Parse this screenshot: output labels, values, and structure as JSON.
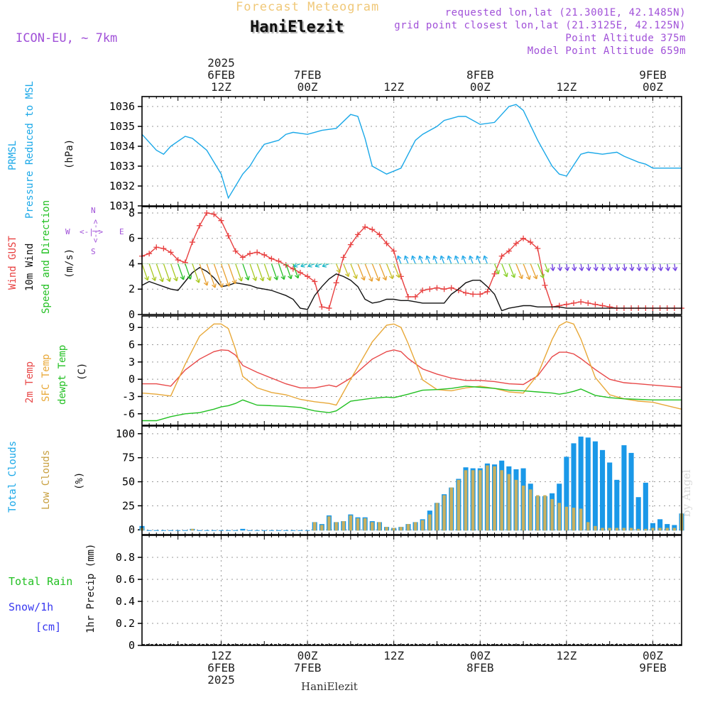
{
  "header": {
    "forecast_title": "Forecast Meteogram",
    "station": "HaniElezit",
    "model": "ICON-EU, ~ 7km",
    "requested": "requested lon,lat (21.3001E, 42.1485N)",
    "grid_point": "grid point closest lon,lat (21.3125E, 42.125N)",
    "point_altitude": "Point Altitude 375m",
    "model_altitude": "Model Point Altitude 659m"
  },
  "time_axis": {
    "top": [
      {
        "key": "t12a",
        "t": 12,
        "lines": [
          "2025",
          "6FEB",
          "12Z"
        ]
      },
      {
        "key": "t00a",
        "t": 24,
        "lines": [
          "7FEB",
          "00Z"
        ]
      },
      {
        "key": "t12b",
        "t": 36,
        "lines": [
          "12Z"
        ]
      },
      {
        "key": "t00b",
        "t": 48,
        "lines": [
          "8FEB",
          "00Z"
        ]
      },
      {
        "key": "t12c",
        "t": 60,
        "lines": [
          "12Z"
        ]
      },
      {
        "key": "t00c",
        "t": 72,
        "lines": [
          "9FEB",
          "00Z"
        ]
      }
    ],
    "bottom": [
      {
        "key": "b12a",
        "t": 12,
        "lines": [
          "12Z",
          "6FEB",
          "2025"
        ]
      },
      {
        "key": "b00a",
        "t": 24,
        "lines": [
          "00Z",
          "7FEB"
        ]
      },
      {
        "key": "b12b",
        "t": 36,
        "lines": [
          "12Z"
        ]
      },
      {
        "key": "b00b",
        "t": 48,
        "lines": [
          "00Z",
          "8FEB"
        ]
      },
      {
        "key": "b12c",
        "t": 60,
        "lines": [
          "12Z"
        ]
      },
      {
        "key": "b00c",
        "t": 72,
        "lines": [
          "00Z",
          "9FEB"
        ]
      }
    ],
    "start_hour": 1,
    "end_hour": 76
  },
  "panel_labels": {
    "pressure": [
      "PRMSL",
      "Pressure Reduced to MSL"
    ],
    "pressure_unit": "(hPa)",
    "wind": [
      "Wind GUST",
      "10m Wind",
      "Speed and Direction"
    ],
    "wind_unit": "(m/s)",
    "compass": {
      "n": "N",
      "s": "S",
      "w": "W",
      "e": "E",
      "ns": "<-|->",
      "ns_v": "<-|->"
    },
    "temp": [
      "2m Temp",
      "SFC Temp",
      "dewpt Temp"
    ],
    "temp_unit": "(C)",
    "clouds": [
      "Total Clouds",
      "Low Clouds"
    ],
    "clouds_unit": "(%)",
    "precip_left": [
      "Total  Rain",
      "Snow/1h",
      "[cm]"
    ],
    "precip_unit": "1hr Precip (mm)"
  },
  "footer": "HaniElezit",
  "byline": "by Angel",
  "colors": {
    "pressure": "#1aa8e8",
    "gust": "#e84040",
    "wind": "#111111",
    "temp2m": "#e84848",
    "sfc": "#e8a838",
    "dewpt": "#22c022",
    "total_clouds": "#1a98e8",
    "low_clouds": "#c8b060",
    "rain": "#22c022",
    "snow": "#3838f0"
  },
  "chart_data": [
    {
      "type": "line",
      "title": "PRMSL Pressure Reduced to MSL",
      "ylabel": "(hPa)",
      "ylim": [
        1031,
        1036.5
      ],
      "yticks": [
        1031,
        1032,
        1033,
        1034,
        1035,
        1036
      ],
      "x_hours": [
        1,
        3,
        4,
        5,
        7,
        8,
        10,
        12,
        13,
        15,
        16,
        17,
        18,
        20,
        21,
        22,
        24,
        25,
        26,
        28,
        30,
        31,
        32,
        33,
        35,
        37,
        38,
        39,
        40,
        42,
        43,
        45,
        46,
        48,
        50,
        51,
        52,
        53,
        54,
        56,
        58,
        59,
        60,
        62,
        63,
        65,
        67,
        68,
        70,
        71,
        72,
        74,
        75,
        76
      ],
      "series": [
        {
          "name": "PRMSL",
          "values": [
            1034.6,
            1033.8,
            1033.6,
            1034.0,
            1034.5,
            1034.4,
            1033.8,
            1032.6,
            1031.4,
            1032.6,
            1033.0,
            1033.6,
            1034.1,
            1034.3,
            1034.6,
            1034.7,
            1034.6,
            1034.7,
            1034.8,
            1034.9,
            1035.6,
            1035.5,
            1034.4,
            1033.0,
            1032.6,
            1032.9,
            1033.6,
            1034.3,
            1034.6,
            1035.0,
            1035.3,
            1035.5,
            1035.5,
            1035.1,
            1035.2,
            1035.6,
            1036.0,
            1036.1,
            1035.8,
            1034.3,
            1033.0,
            1032.6,
            1032.5,
            1033.6,
            1033.7,
            1033.6,
            1033.7,
            1033.5,
            1033.2,
            1033.1,
            1032.9,
            1032.9,
            1032.9,
            1032.9
          ]
        }
      ]
    },
    {
      "type": "line",
      "title": "Wind GUST / 10m Wind Speed and Direction",
      "ylabel": "(m/s)",
      "ylim": [
        0,
        8.5
      ],
      "yticks": [
        0,
        2,
        4,
        6,
        8
      ],
      "x_hours": [
        1,
        2,
        3,
        4,
        5,
        6,
        7,
        8,
        9,
        10,
        11,
        12,
        13,
        14,
        15,
        16,
        17,
        18,
        19,
        20,
        21,
        22,
        23,
        24,
        25,
        26,
        27,
        28,
        29,
        30,
        31,
        32,
        33,
        34,
        35,
        36,
        37,
        38,
        39,
        40,
        41,
        42,
        43,
        44,
        45,
        46,
        47,
        48,
        49,
        50,
        51,
        52,
        53,
        54,
        55,
        56,
        57,
        58,
        59,
        60,
        61,
        62,
        63,
        64,
        65,
        66,
        67,
        68,
        69,
        70,
        71,
        72,
        73,
        74,
        75,
        76
      ],
      "series": [
        {
          "name": "Wind GUST",
          "values": [
            4.6,
            4.8,
            5.3,
            5.2,
            4.9,
            4.3,
            4.1,
            5.7,
            7.0,
            8.0,
            7.9,
            7.4,
            6.2,
            5.0,
            4.5,
            4.8,
            4.9,
            4.7,
            4.4,
            4.2,
            3.9,
            3.6,
            3.3,
            3.0,
            2.6,
            0.6,
            0.5,
            2.5,
            4.5,
            5.5,
            6.3,
            6.9,
            6.7,
            6.3,
            5.6,
            5.0,
            3.0,
            1.4,
            1.4,
            1.9,
            2.0,
            2.1,
            2.0,
            2.1,
            1.9,
            1.7,
            1.6,
            1.6,
            1.8,
            3.2,
            4.6,
            5.0,
            5.6,
            6.0,
            5.7,
            5.2,
            2.3,
            0.6,
            0.7,
            0.8,
            0.9,
            1.0,
            0.9,
            0.8,
            0.7,
            0.6,
            0.5,
            0.5,
            0.5,
            0.5,
            0.5,
            0.5,
            0.5,
            0.5,
            0.5,
            0.5
          ]
        },
        {
          "name": "10m Wind",
          "values": [
            2.3,
            2.6,
            2.4,
            2.2,
            2.0,
            1.9,
            2.6,
            3.3,
            3.7,
            3.4,
            2.9,
            2.2,
            2.3,
            2.5,
            2.4,
            2.3,
            2.1,
            2.0,
            1.9,
            1.7,
            1.5,
            1.2,
            0.5,
            0.4,
            1.5,
            2.2,
            2.8,
            3.2,
            3.0,
            2.7,
            2.2,
            1.2,
            0.9,
            1.0,
            1.2,
            1.2,
            1.1,
            1.1,
            1.0,
            0.9,
            0.9,
            0.9,
            0.9,
            1.6,
            2.0,
            2.5,
            2.7,
            2.7,
            2.2,
            1.6,
            0.3,
            0.5,
            0.6,
            0.7,
            0.7,
            0.6,
            0.6,
            0.6,
            0.6,
            0.5,
            0.5,
            0.5,
            0.5,
            0.5,
            0.5,
            0.5,
            0.5,
            0.5,
            0.5,
            0.5,
            0.5,
            0.5,
            0.5,
            0.5,
            0.5,
            0.5
          ]
        }
      ],
      "wind_barb_level": 4
    },
    {
      "type": "line",
      "title": "2m Temp / SFC Temp / dewpt Temp",
      "ylabel": "(C)",
      "ylim": [
        -8,
        11
      ],
      "yticks": [
        -6,
        -3,
        0,
        3,
        6,
        9
      ],
      "x_hours": [
        1,
        3,
        5,
        7,
        9,
        11,
        12,
        13,
        14,
        15,
        17,
        19,
        21,
        23,
        25,
        27,
        28,
        30,
        33,
        35,
        36,
        37,
        38,
        40,
        42,
        44,
        46,
        48,
        50,
        52,
        54,
        56,
        58,
        59,
        60,
        61,
        62,
        64,
        66,
        68,
        70,
        72,
        74,
        76
      ],
      "series": [
        {
          "name": "2m Temp",
          "values": [
            -0.8,
            -0.8,
            -1.2,
            1.6,
            3.5,
            4.8,
            5.1,
            5.0,
            4.2,
            2.4,
            1.2,
            0.2,
            -0.8,
            -1.5,
            -1.5,
            -1.0,
            -1.3,
            0.2,
            3.5,
            4.8,
            5.1,
            4.8,
            3.6,
            1.8,
            0.9,
            0.2,
            -0.2,
            -0.2,
            -0.4,
            -0.8,
            -0.9,
            0.6,
            3.9,
            4.7,
            4.7,
            4.4,
            3.6,
            1.7,
            0.0,
            -0.6,
            -0.8,
            -1.0,
            -1.2,
            -1.4
          ]
        },
        {
          "name": "SFC Temp",
          "values": [
            -2.4,
            -2.6,
            -2.9,
            2.6,
            7.5,
            9.6,
            9.6,
            8.8,
            5.2,
            0.5,
            -1.5,
            -2.3,
            -2.7,
            -3.5,
            -3.9,
            -4.2,
            -4.5,
            0.0,
            6.5,
            9.4,
            9.6,
            9.0,
            6.2,
            -0.1,
            -1.8,
            -2.0,
            -1.5,
            -1.2,
            -1.6,
            -2.2,
            -2.4,
            0.8,
            6.9,
            9.3,
            10.0,
            9.6,
            7.0,
            0.3,
            -2.7,
            -3.4,
            -3.8,
            -4.0,
            -4.6,
            -5.2
          ]
        },
        {
          "name": "dewpt Temp",
          "values": [
            -7.2,
            -7.2,
            -6.5,
            -6.0,
            -5.8,
            -5.2,
            -4.8,
            -4.6,
            -4.2,
            -3.6,
            -4.5,
            -4.6,
            -4.7,
            -4.9,
            -5.5,
            -5.8,
            -5.5,
            -3.8,
            -3.3,
            -3.1,
            -3.2,
            -2.9,
            -2.6,
            -1.9,
            -1.8,
            -1.6,
            -1.2,
            -1.4,
            -1.6,
            -1.9,
            -2.0,
            -2.2,
            -2.4,
            -2.6,
            -2.4,
            -2.1,
            -1.7,
            -2.8,
            -3.2,
            -3.4,
            -3.5,
            -3.6,
            -3.6,
            -3.6
          ]
        }
      ]
    },
    {
      "type": "bar",
      "title": "Total Clouds / Low Clouds",
      "ylabel": "(%)",
      "ylim": [
        -5,
        108
      ],
      "yticks": [
        0,
        25,
        50,
        75,
        100
      ],
      "x_hours": [
        1,
        2,
        3,
        4,
        5,
        6,
        7,
        8,
        9,
        10,
        11,
        12,
        13,
        14,
        15,
        16,
        17,
        18,
        19,
        20,
        21,
        22,
        23,
        24,
        25,
        26,
        27,
        28,
        29,
        30,
        31,
        32,
        33,
        34,
        35,
        36,
        37,
        38,
        39,
        40,
        41,
        42,
        43,
        44,
        45,
        46,
        47,
        48,
        49,
        50,
        51,
        52,
        53,
        54,
        55,
        56,
        57,
        58,
        59,
        60,
        61,
        62,
        63,
        64,
        65,
        66,
        67,
        68,
        69,
        70,
        71,
        72,
        73,
        74,
        75,
        76
      ],
      "series": [
        {
          "name": "Total Clouds",
          "values": [
            4,
            0,
            0,
            0,
            0,
            0,
            0,
            1,
            0,
            0,
            0,
            0,
            0,
            0,
            1,
            0,
            0,
            0,
            0,
            0,
            0,
            0,
            0,
            0,
            8,
            6,
            15,
            8,
            9,
            16,
            13,
            13,
            9,
            8,
            3,
            2,
            3,
            6,
            8,
            11,
            20,
            28,
            37,
            44,
            53,
            65,
            64,
            64,
            69,
            68,
            72,
            66,
            63,
            64,
            48,
            35,
            35,
            38,
            48,
            76,
            90,
            97,
            96,
            92,
            83,
            70,
            52,
            88,
            80,
            34,
            49,
            7,
            11,
            6,
            5,
            17
          ]
        },
        {
          "name": "Low Clouds",
          "values": [
            2,
            0,
            0,
            0,
            0,
            0,
            0,
            1,
            0,
            0,
            0,
            0,
            0,
            0,
            0,
            0,
            0,
            0,
            0,
            0,
            0,
            0,
            0,
            0,
            8,
            5,
            14,
            8,
            9,
            15,
            12,
            12,
            8,
            8,
            3,
            2,
            3,
            6,
            8,
            10,
            16,
            28,
            36,
            44,
            52,
            62,
            62,
            62,
            67,
            66,
            62,
            58,
            52,
            46,
            42,
            36,
            36,
            32,
            28,
            24,
            23,
            22,
            8,
            4,
            2,
            2,
            2,
            2,
            2,
            1,
            1,
            2,
            2,
            2,
            2,
            17
          ]
        }
      ]
    },
    {
      "type": "bar",
      "title": "1hr Precip",
      "ylabel": "1hr Precip (mm)",
      "ylim": [
        0,
        1
      ],
      "yticks": [
        0,
        0.2,
        0.4,
        0.6,
        0.8
      ],
      "x_hours": [],
      "series": [
        {
          "name": "Total Rain",
          "values": []
        },
        {
          "name": "Snow/1h",
          "values": []
        }
      ]
    }
  ]
}
